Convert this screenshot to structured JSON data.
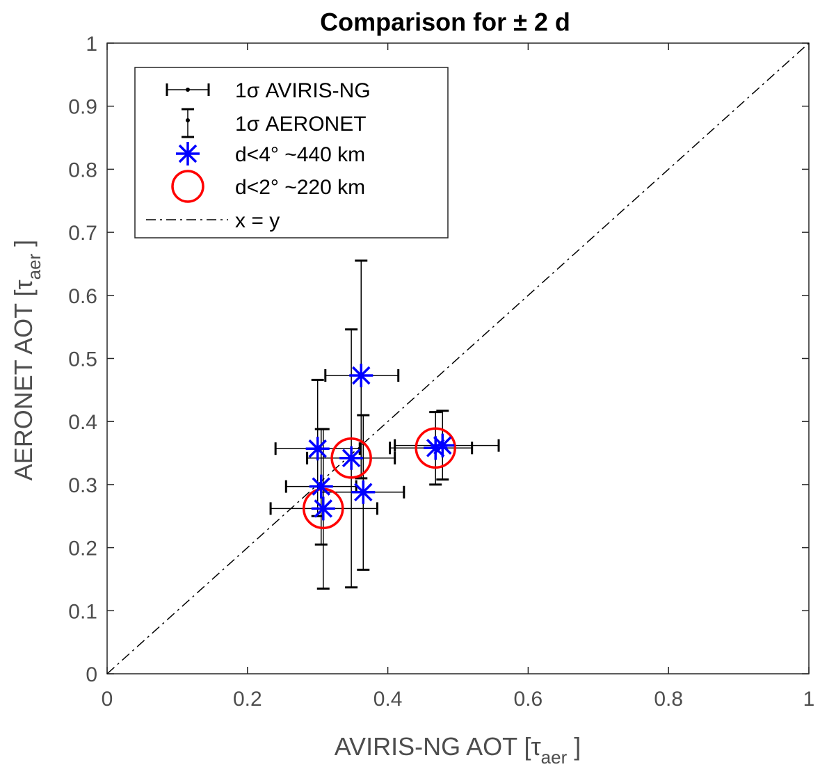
{
  "chart_data": {
    "type": "scatter",
    "title": "Comparison for ± 2 d",
    "xlabel": "AVIRIS-NG AOT [τ",
    "xlabel_sub": "aer",
    "xlabel_end": " ]",
    "ylabel": "AERONET AOT [τ",
    "ylabel_sub": "aer",
    "ylabel_end": " ]",
    "xlim": [
      0,
      1
    ],
    "ylim": [
      0,
      1
    ],
    "xticks": [
      0,
      0.2,
      0.4,
      0.6,
      0.8,
      1
    ],
    "xtick_labels": [
      "0",
      "0.2",
      "0.4",
      "0.6",
      "0.8",
      "1"
    ],
    "yticks": [
      0,
      0.1,
      0.2,
      0.3,
      0.4,
      0.5,
      0.6,
      0.7,
      0.8,
      0.9,
      1
    ],
    "ytick_labels": [
      "0",
      "0.1",
      "0.2",
      "0.3",
      "0.4",
      "0.5",
      "0.6",
      "0.7",
      "0.8",
      "0.9",
      "1"
    ],
    "grid": false,
    "legend_position": "top-left",
    "legend": [
      {
        "label": "1σ  AVIRIS-NG",
        "marker": "xerror"
      },
      {
        "label": "1σ  AERONET",
        "marker": "yerror"
      },
      {
        "label": "d<4° ~440 km",
        "marker": "asterisk"
      },
      {
        "label": "d<2° ~220 km",
        "marker": "circle"
      },
      {
        "label": "x = y",
        "marker": "dashdot"
      }
    ],
    "colors": {
      "asterisk": "#0000ff",
      "circle": "#ff0000",
      "errorbar": "#000000",
      "line": "#000000"
    },
    "points": [
      {
        "x": 0.362,
        "y": 0.473,
        "xerr_low": 0.311,
        "xerr_high": 0.415,
        "yerr_low": 0.31,
        "yerr_high": 0.655
      },
      {
        "x": 0.3,
        "y": 0.357,
        "xerr_low": 0.24,
        "xerr_high": 0.36,
        "yerr_low": 0.25,
        "yerr_high": 0.466
      },
      {
        "x": 0.305,
        "y": 0.297,
        "xerr_low": 0.255,
        "xerr_high": 0.355,
        "yerr_low": 0.205,
        "yerr_high": 0.388
      },
      {
        "x": 0.308,
        "y": 0.262,
        "xerr_low": 0.233,
        "xerr_high": 0.385,
        "yerr_low": 0.135,
        "yerr_high": 0.388
      },
      {
        "x": 0.348,
        "y": 0.342,
        "xerr_low": 0.285,
        "xerr_high": 0.41,
        "yerr_low": 0.137,
        "yerr_high": 0.546
      },
      {
        "x": 0.365,
        "y": 0.288,
        "xerr_low": 0.305,
        "xerr_high": 0.423,
        "yerr_low": 0.165,
        "yerr_high": 0.41
      },
      {
        "x": 0.468,
        "y": 0.358,
        "xerr_low": 0.403,
        "xerr_high": 0.52,
        "yerr_low": 0.3,
        "yerr_high": 0.415
      },
      {
        "x": 0.478,
        "y": 0.362,
        "xerr_low": 0.41,
        "xerr_high": 0.558,
        "yerr_low": 0.308,
        "yerr_high": 0.417
      }
    ],
    "circled_points": [
      {
        "x": 0.308,
        "y": 0.262
      },
      {
        "x": 0.348,
        "y": 0.342
      },
      {
        "x": 0.468,
        "y": 0.358
      }
    ],
    "reference_line": {
      "x": [
        0,
        1
      ],
      "y": [
        0,
        1
      ],
      "style": "dash-dot"
    }
  }
}
